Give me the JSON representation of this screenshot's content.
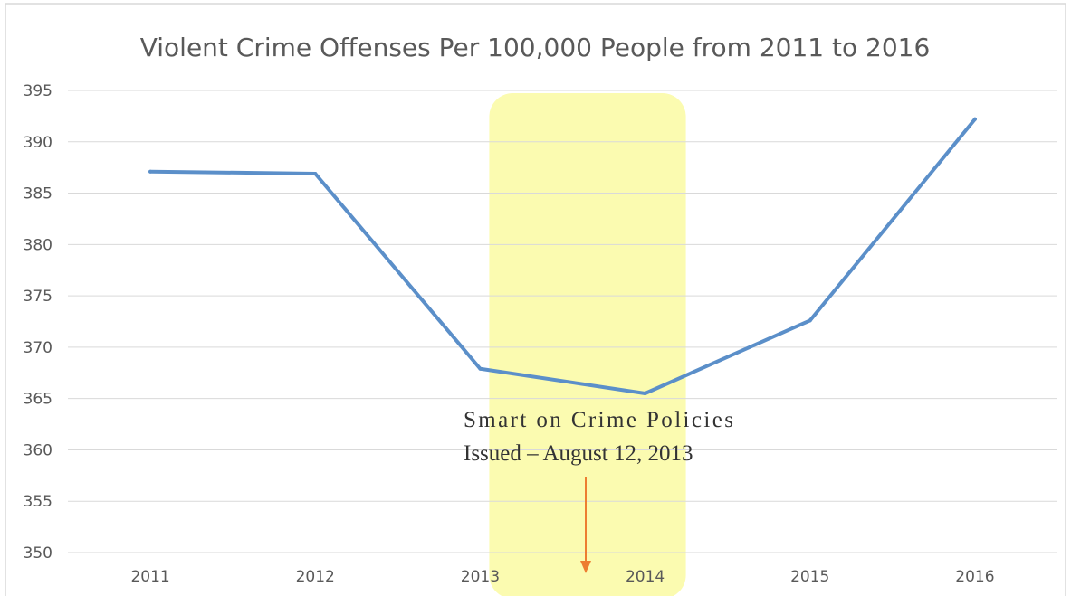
{
  "chart_data": {
    "type": "line",
    "title": "Violent Crime Offenses Per 100,000 People from 2011 to 2016",
    "xlabel": "",
    "ylabel": "",
    "categories": [
      "2011",
      "2012",
      "2013",
      "2014",
      "2015",
      "2016"
    ],
    "series": [
      {
        "values": [
          387.1,
          386.9,
          367.9,
          365.5,
          372.6,
          392.2
        ]
      }
    ],
    "ylim": [
      350,
      395
    ],
    "yticks": [
      350,
      355,
      360,
      365,
      370,
      375,
      380,
      385,
      390,
      395
    ],
    "grid": true,
    "legend": "none",
    "highlight": {
      "from": "2013",
      "to": "2014"
    },
    "annotation": {
      "line1": "Smart on Crime Policies",
      "line2": "Issued – August 12, 2013"
    },
    "colors": {
      "line": "#5b8fc9",
      "highlight": "#fbfbb0",
      "arrow": "#ed7d31",
      "grid": "#d9d9d9",
      "text": "#595959"
    }
  }
}
